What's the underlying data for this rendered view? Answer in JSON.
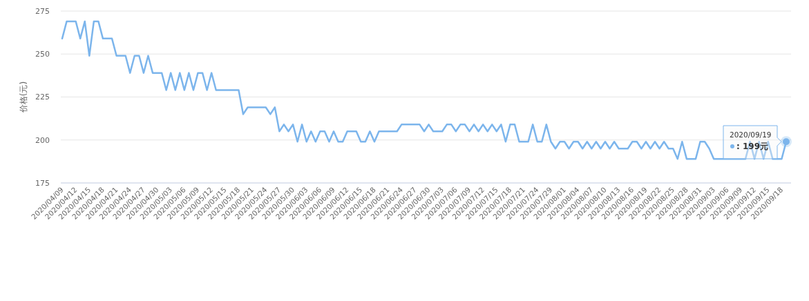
{
  "chart_data": {
    "type": "line",
    "ylabel": "价格(元)",
    "categories": [
      "2020/04/09",
      null,
      null,
      "2020/04/12",
      null,
      null,
      "2020/04/15",
      null,
      null,
      "2020/04/18",
      null,
      null,
      "2020/04/21",
      null,
      null,
      "2020/04/24",
      null,
      null,
      "2020/04/27",
      null,
      null,
      "2020/04/30",
      null,
      null,
      "2020/05/03",
      null,
      null,
      "2020/05/06",
      null,
      null,
      "2020/05/09",
      null,
      null,
      "2020/05/12",
      null,
      null,
      "2020/05/15",
      null,
      null,
      "2020/05/18",
      null,
      null,
      "2020/05/21",
      null,
      null,
      "2020/05/24",
      null,
      null,
      "2020/05/27",
      null,
      null,
      "2020/05/30",
      null,
      null,
      "2020/06/03",
      null,
      null,
      "2020/06/06",
      null,
      null,
      "2020/06/09",
      null,
      null,
      "2020/06/12",
      null,
      null,
      "2020/06/15",
      null,
      null,
      "2020/06/18",
      null,
      null,
      "2020/06/21",
      null,
      null,
      "2020/06/24",
      null,
      null,
      "2020/06/27",
      null,
      null,
      "2020/06/30",
      null,
      null,
      "2020/07/03",
      null,
      null,
      "2020/07/06",
      null,
      null,
      "2020/07/09",
      null,
      null,
      "2020/07/12",
      null,
      null,
      "2020/07/15",
      null,
      null,
      "2020/07/18",
      null,
      null,
      "2020/07/21",
      null,
      null,
      "2020/07/24",
      null,
      null,
      "2020/07/29",
      null,
      null,
      "2020/08/01",
      null,
      null,
      "2020/08/04",
      null,
      null,
      "2020/08/07",
      null,
      null,
      "2020/08/10",
      null,
      null,
      "2020/08/13",
      null,
      null,
      "2020/08/16",
      null,
      null,
      "2020/08/19",
      null,
      null,
      "2020/08/22",
      null,
      null,
      "2020/08/25",
      null,
      null,
      "2020/08/28",
      null,
      null,
      "2020/08/31",
      null,
      null,
      "2020/09/03",
      null,
      null,
      "2020/09/06",
      null,
      null,
      "2020/09/09",
      null,
      null,
      "2020/09/12",
      null,
      null,
      "2020/09/15",
      null,
      null,
      "2020/09/18",
      null
    ],
    "series": [
      {
        "color": "#7cb5ec",
        "values": [
          259,
          269,
          269,
          269,
          259,
          269,
          249,
          269,
          269,
          259,
          259,
          259,
          249,
          249,
          249,
          239,
          249,
          249,
          239,
          249,
          239,
          239,
          239,
          229,
          239,
          229,
          239,
          229,
          239,
          229,
          239,
          239,
          229,
          239,
          229,
          229,
          229,
          229,
          229,
          229,
          215,
          219,
          219,
          219,
          219,
          219,
          215,
          219,
          205,
          209,
          205,
          209,
          199,
          209,
          199,
          205,
          199,
          205,
          205,
          199,
          205,
          199,
          199,
          205,
          205,
          205,
          199,
          199,
          205,
          199,
          205,
          205,
          205,
          205,
          205,
          209,
          209,
          209,
          209,
          209,
          205,
          209,
          205,
          205,
          205,
          209,
          209,
          205,
          209,
          209,
          205,
          209,
          205,
          209,
          205,
          209,
          205,
          209,
          199,
          209,
          209,
          199,
          199,
          199,
          209,
          199,
          199,
          209,
          199,
          195,
          199,
          199,
          195,
          199,
          199,
          195,
          199,
          195,
          199,
          195,
          199,
          195,
          199,
          195,
          195,
          195,
          199,
          199,
          195,
          199,
          195,
          199,
          195,
          199,
          195,
          195,
          189,
          199,
          189,
          189,
          189,
          199,
          199,
          195,
          189,
          189,
          189,
          189,
          189,
          189,
          189,
          189,
          199,
          189,
          199,
          189,
          199,
          189,
          189,
          189,
          199
        ]
      }
    ],
    "ylim": [
      175,
      275
    ],
    "yticks": [
      175,
      200,
      225,
      250,
      275
    ],
    "grid": "y",
    "marker": "none",
    "line_style": "solid",
    "annotations": [
      "2020/09/19",
      ": 199元"
    ]
  }
}
